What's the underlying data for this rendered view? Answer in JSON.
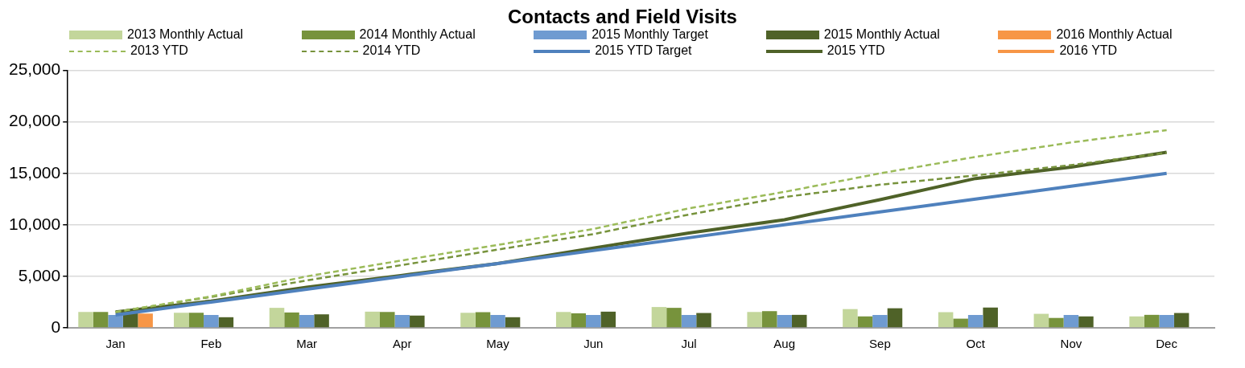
{
  "chart_data": {
    "type": "bar",
    "title": "Contacts and Field Visits",
    "categories": [
      "Jan",
      "Feb",
      "Mar",
      "Apr",
      "May",
      "Jun",
      "Jul",
      "Aug",
      "Sep",
      "Oct",
      "Nov",
      "Dec"
    ],
    "series": [
      {
        "name": "2013 Monthly Actual",
        "color": "#c3d69b",
        "values": [
          1540,
          1460,
          1940,
          1570,
          1460,
          1540,
          2020,
          1540,
          1820,
          1520,
          1360,
          1110
        ]
      },
      {
        "name": "2014 Monthly Actual",
        "color": "#77933c",
        "values": [
          1540,
          1460,
          1490,
          1540,
          1520,
          1410,
          1940,
          1620,
          1110,
          890,
          960,
          1260
        ]
      },
      {
        "name": "2015 Monthly Target",
        "color": "#6f9bd1",
        "values": [
          1250,
          1250,
          1250,
          1250,
          1250,
          1250,
          1250,
          1250,
          1250,
          1250,
          1250,
          1250
        ]
      },
      {
        "name": "2015 Monthly Actual",
        "color": "#4f6228",
        "values": [
          1550,
          1030,
          1310,
          1190,
          1030,
          1570,
          1440,
          1260,
          1900,
          1970,
          1110,
          1440
        ]
      },
      {
        "name": "2016 Monthly Actual",
        "color": "#f79646",
        "values": [
          1390,
          null,
          null,
          null,
          null,
          null,
          null,
          null,
          null,
          null,
          null,
          null
        ]
      },
      {
        "name": "2013 YTD",
        "type": "line",
        "line_style": "dashed",
        "color": "#9bbb59",
        "values": [
          1540,
          3050,
          5000,
          6550,
          8050,
          9600,
          11600,
          13200,
          15000,
          16600,
          18000,
          19200
        ]
      },
      {
        "name": "2014 YTD",
        "type": "line",
        "line_style": "dashed",
        "color": "#77933c",
        "values": [
          1540,
          3000,
          4600,
          6100,
          7600,
          9100,
          11000,
          12700,
          13900,
          14800,
          15800,
          17000
        ]
      },
      {
        "name": "2015 YTD Target",
        "type": "line",
        "line_style": "solid",
        "color": "#4f81bd",
        "values": [
          1250,
          2500,
          3750,
          5000,
          6250,
          7500,
          8750,
          10000,
          11250,
          12500,
          13750,
          15000
        ]
      },
      {
        "name": "2015 YTD",
        "type": "line",
        "line_style": "solid",
        "color": "#4f6228",
        "values": [
          1550,
          2600,
          3950,
          5100,
          6250,
          7750,
          9200,
          10500,
          12450,
          14500,
          15600,
          17050
        ]
      },
      {
        "name": "2016 YTD",
        "type": "line",
        "line_style": "solid",
        "color": "#f79646",
        "values": [
          null,
          null,
          null,
          null,
          null,
          null,
          null,
          null,
          null,
          null,
          null,
          null
        ]
      }
    ],
    "ylim": [
      0,
      25000
    ],
    "yticks": [
      0,
      {
        "value": 5000,
        "label": "5,000"
      },
      {
        "value": 10000,
        "label": "10,000"
      },
      {
        "value": 15000,
        "label": "15,000"
      },
      {
        "value": 20000,
        "label": "20,000"
      },
      {
        "value": 25000,
        "label": "25,000"
      }
    ],
    "grid": "y",
    "legend": "top",
    "marker": "none"
  }
}
